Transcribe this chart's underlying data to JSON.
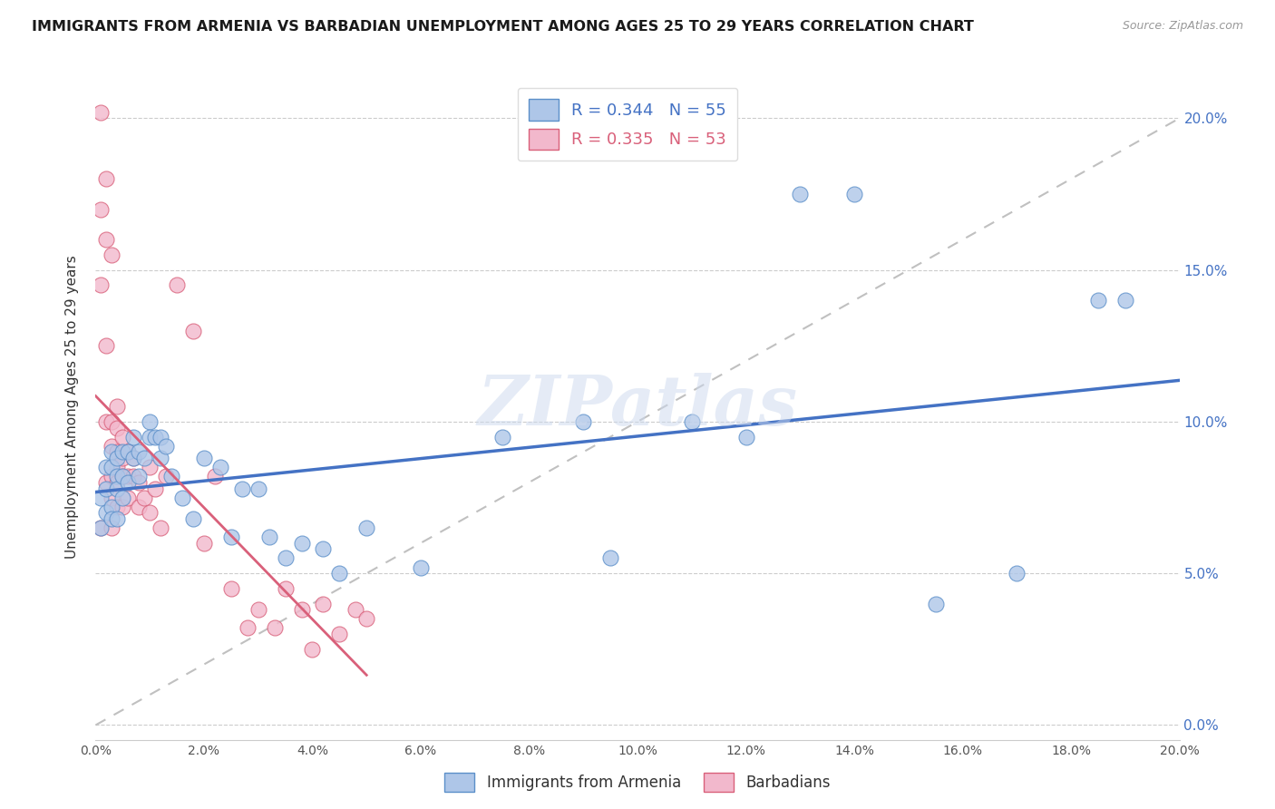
{
  "title": "IMMIGRANTS FROM ARMENIA VS BARBADIAN UNEMPLOYMENT AMONG AGES 25 TO 29 YEARS CORRELATION CHART",
  "source": "Source: ZipAtlas.com",
  "ylabel": "Unemployment Among Ages 25 to 29 years",
  "xlabel_ticks": [
    "0.0%",
    "2.0%",
    "4.0%",
    "6.0%",
    "8.0%",
    "10.0%",
    "12.0%",
    "14.0%",
    "16.0%",
    "18.0%",
    "20.0%"
  ],
  "ylabel_ticks": [
    "0.0%",
    "5.0%",
    "10.0%",
    "15.0%",
    "20.0%"
  ],
  "xlim": [
    0,
    0.2
  ],
  "ylim": [
    -0.005,
    0.215
  ],
  "legend_labels": [
    "Immigrants from Armenia",
    "Barbadians"
  ],
  "blue_R": "0.344",
  "blue_N": "55",
  "pink_R": "0.335",
  "pink_N": "53",
  "blue_color": "#aec6e8",
  "pink_color": "#f2b8cc",
  "blue_edge_color": "#5b8fc9",
  "pink_edge_color": "#d9607a",
  "blue_line_color": "#4472c4",
  "pink_line_color": "#d9607a",
  "trendline_dash_color": "#c0c0c0",
  "watermark": "ZIPatlas",
  "blue_x": [
    0.001,
    0.001,
    0.002,
    0.002,
    0.002,
    0.003,
    0.003,
    0.003,
    0.003,
    0.004,
    0.004,
    0.004,
    0.004,
    0.005,
    0.005,
    0.005,
    0.006,
    0.006,
    0.007,
    0.007,
    0.008,
    0.008,
    0.009,
    0.01,
    0.01,
    0.011,
    0.012,
    0.012,
    0.013,
    0.014,
    0.016,
    0.018,
    0.02,
    0.023,
    0.025,
    0.027,
    0.03,
    0.032,
    0.035,
    0.038,
    0.042,
    0.045,
    0.05,
    0.06,
    0.075,
    0.09,
    0.095,
    0.11,
    0.12,
    0.13,
    0.14,
    0.155,
    0.17,
    0.185,
    0.19
  ],
  "blue_y": [
    0.075,
    0.065,
    0.085,
    0.078,
    0.07,
    0.09,
    0.085,
    0.072,
    0.068,
    0.088,
    0.082,
    0.078,
    0.068,
    0.09,
    0.082,
    0.075,
    0.09,
    0.08,
    0.095,
    0.088,
    0.09,
    0.082,
    0.088,
    0.1,
    0.095,
    0.095,
    0.095,
    0.088,
    0.092,
    0.082,
    0.075,
    0.068,
    0.088,
    0.085,
    0.062,
    0.078,
    0.078,
    0.062,
    0.055,
    0.06,
    0.058,
    0.05,
    0.065,
    0.052,
    0.095,
    0.1,
    0.055,
    0.1,
    0.095,
    0.175,
    0.175,
    0.04,
    0.05,
    0.14,
    0.14
  ],
  "pink_x": [
    0.001,
    0.001,
    0.001,
    0.001,
    0.002,
    0.002,
    0.002,
    0.002,
    0.002,
    0.003,
    0.003,
    0.003,
    0.003,
    0.003,
    0.003,
    0.004,
    0.004,
    0.004,
    0.004,
    0.004,
    0.004,
    0.005,
    0.005,
    0.005,
    0.005,
    0.006,
    0.006,
    0.006,
    0.007,
    0.007,
    0.008,
    0.008,
    0.009,
    0.01,
    0.01,
    0.011,
    0.012,
    0.013,
    0.015,
    0.018,
    0.02,
    0.022,
    0.025,
    0.028,
    0.03,
    0.033,
    0.035,
    0.038,
    0.04,
    0.042,
    0.045,
    0.048,
    0.05
  ],
  "pink_y": [
    0.202,
    0.17,
    0.145,
    0.065,
    0.18,
    0.16,
    0.125,
    0.1,
    0.08,
    0.155,
    0.1,
    0.092,
    0.082,
    0.075,
    0.065,
    0.105,
    0.098,
    0.09,
    0.085,
    0.08,
    0.072,
    0.095,
    0.088,
    0.082,
    0.072,
    0.09,
    0.082,
    0.075,
    0.088,
    0.082,
    0.08,
    0.072,
    0.075,
    0.085,
    0.07,
    0.078,
    0.065,
    0.082,
    0.145,
    0.13,
    0.06,
    0.082,
    0.045,
    0.032,
    0.038,
    0.032,
    0.045,
    0.038,
    0.025,
    0.04,
    0.03,
    0.038,
    0.035
  ]
}
